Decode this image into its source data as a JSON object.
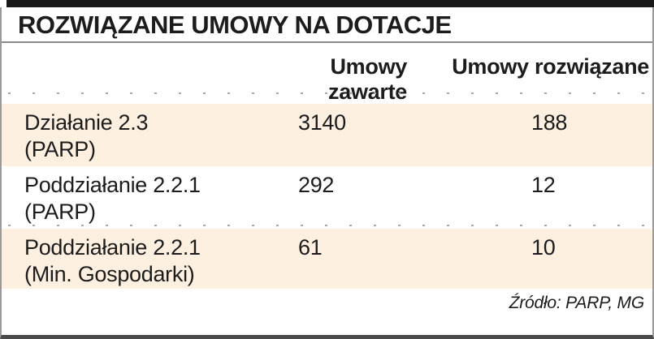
{
  "table": {
    "title": "ROZWIĄZANE UMOWY NA DOTACJE",
    "columns": [
      "",
      "Umowy zawarte",
      "Umowy rozwiązane"
    ],
    "rows": [
      {
        "label_line1": "Działanie 2.3",
        "label_line2": "(PARP)",
        "zawarte": "3140",
        "rozwiazane": "188"
      },
      {
        "label_line1": "Poddziałanie 2.2.1",
        "label_line2": "(PARP)",
        "zawarte": "292",
        "rozwiazane": "12"
      },
      {
        "label_line1": "Poddziałanie 2.2.1",
        "label_line2": "(Min. Gospodarki)",
        "zawarte": "61",
        "rozwiazane": "10"
      }
    ],
    "source": "Źródło: PARP, MG"
  },
  "colors": {
    "row_highlight": "#fdf0e1",
    "text": "#1c1c1c",
    "top_bar": "#191919",
    "frame_border": "#9a9a9a",
    "bottom_border": "#4a4a4a"
  },
  "chart_data": {
    "type": "table",
    "title": "ROZWIĄZANE UMOWY NA DOTACJE",
    "columns": [
      "",
      "Umowy zawarte",
      "Umowy rozwiązane"
    ],
    "rows": [
      [
        "Działanie 2.3 (PARP)",
        3140,
        188
      ],
      [
        "Poddziałanie 2.2.1 (PARP)",
        292,
        12
      ],
      [
        "Poddziałanie 2.2.1 (Min. Gospodarki)",
        61,
        10
      ]
    ],
    "source": "Źródło: PARP, MG",
    "legend_position": "none",
    "grid": "off"
  }
}
